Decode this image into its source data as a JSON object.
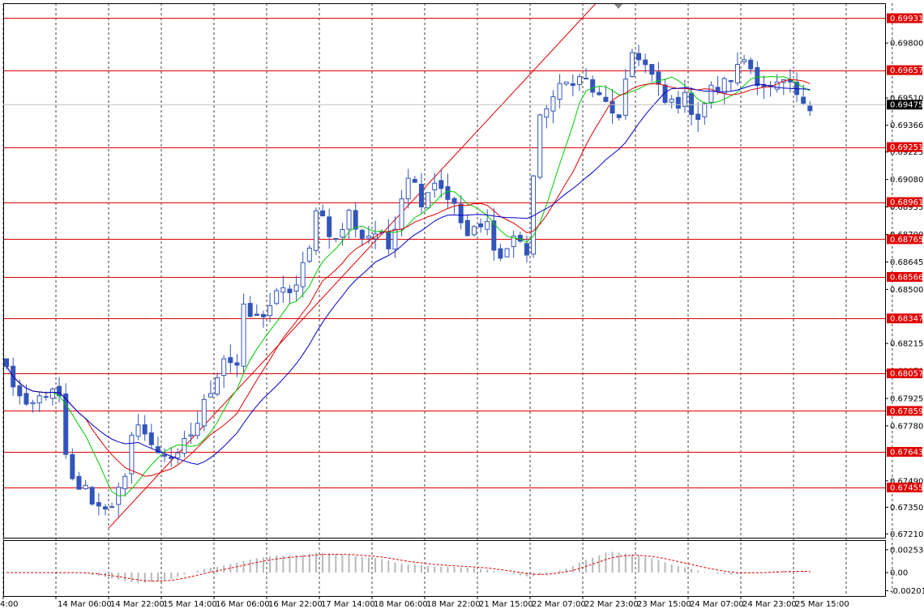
{
  "chart_data": {
    "type": "candlestick",
    "price_axis": {
      "ticks": [
        "0.69800",
        "0.69510",
        "0.69366",
        "0.69225",
        "0.69080",
        "0.68935",
        "0.68790",
        "0.68645",
        "0.68500",
        "0.68215",
        "0.68070",
        "0.67925",
        "0.67780",
        "0.67490",
        "0.67350",
        "0.67210"
      ],
      "tick_values": [
        0.698,
        0.6951,
        0.69366,
        0.69225,
        0.6908,
        0.68935,
        0.6879,
        0.68645,
        0.685,
        0.68215,
        0.6807,
        0.67925,
        0.6778,
        0.6749,
        0.6735,
        0.6721
      ],
      "range": [
        0.6719,
        0.7001
      ]
    },
    "time_axis": {
      "labels": [
        "4:00",
        "14 Mar 06:00",
        "14 Mar 22:00",
        "15 Mar 14:00",
        "16 Mar 06:00",
        "16 Mar 22:00",
        "17 Mar 14:00",
        "18 Mar 06:00",
        "18 Mar 22:00",
        "21 Mar 15:00",
        "22 Mar 07:00",
        "22 Mar 23:00",
        "23 Mar 15:00",
        "24 Mar 07:00",
        "24 Mar 23:00",
        "25 Mar 15:00"
      ],
      "label_bar_index": [
        0,
        8,
        16,
        24,
        32,
        40,
        48,
        56,
        64,
        72,
        80,
        88,
        96,
        104,
        112,
        120
      ]
    },
    "levels": [
      {
        "label": "0.69931",
        "value": 0.69931
      },
      {
        "label": "0.69657",
        "value": 0.69657
      },
      {
        "label": "0.69251",
        "value": 0.69251
      },
      {
        "label": "0.68961",
        "value": 0.68961
      },
      {
        "label": "0.68765",
        "value": 0.68765
      },
      {
        "label": "0.68566",
        "value": 0.68566
      },
      {
        "label": "0.68347",
        "value": 0.68347
      },
      {
        "label": "0.68057",
        "value": 0.68057
      },
      {
        "label": "0.67859",
        "value": 0.67859
      },
      {
        "label": "0.67643",
        "value": 0.67643
      },
      {
        "label": "0.67455",
        "value": 0.67455
      }
    ],
    "current_price": {
      "label": "0.69475",
      "value": 0.69475
    },
    "trendline": {
      "from": {
        "bar": 16,
        "price": 0.6724
      },
      "to": {
        "bar": 90,
        "price": 0.7001
      }
    },
    "close_anchors": [
      [
        0,
        0.6808
      ],
      [
        3,
        0.6785
      ],
      [
        6,
        0.6796
      ],
      [
        8,
        0.6792
      ],
      [
        9,
        0.676
      ],
      [
        10,
        0.6748
      ],
      [
        12,
        0.6744
      ],
      [
        14,
        0.6735
      ],
      [
        16,
        0.6738
      ],
      [
        18,
        0.6748
      ],
      [
        19,
        0.677
      ],
      [
        20,
        0.6782
      ],
      [
        22,
        0.6766
      ],
      [
        24,
        0.6764
      ],
      [
        26,
        0.676
      ],
      [
        27,
        0.6768
      ],
      [
        29,
        0.678
      ],
      [
        31,
        0.6798
      ],
      [
        33,
        0.6815
      ],
      [
        35,
        0.681
      ],
      [
        36,
        0.6838
      ],
      [
        38,
        0.6834
      ],
      [
        41,
        0.6846
      ],
      [
        44,
        0.6852
      ],
      [
        46,
        0.687
      ],
      [
        47,
        0.6895
      ],
      [
        48,
        0.6888
      ],
      [
        50,
        0.6875
      ],
      [
        52,
        0.689
      ],
      [
        54,
        0.6878
      ],
      [
        56,
        0.688
      ],
      [
        58,
        0.6872
      ],
      [
        60,
        0.69
      ],
      [
        61,
        0.6912
      ],
      [
        63,
        0.6898
      ],
      [
        65,
        0.6908
      ],
      [
        67,
        0.69
      ],
      [
        70,
        0.6878
      ],
      [
        73,
        0.6884
      ],
      [
        75,
        0.6866
      ],
      [
        77,
        0.6878
      ],
      [
        79,
        0.687
      ],
      [
        80,
        0.691
      ],
      [
        81,
        0.6938
      ],
      [
        82,
        0.6948
      ],
      [
        84,
        0.6955
      ],
      [
        86,
        0.6962
      ],
      [
        88,
        0.696
      ],
      [
        90,
        0.695
      ],
      [
        92,
        0.6945
      ],
      [
        93,
        0.6938
      ],
      [
        95,
        0.6975
      ],
      [
        96,
        0.6974
      ],
      [
        98,
        0.6962
      ],
      [
        100,
        0.6948
      ],
      [
        103,
        0.695
      ],
      [
        105,
        0.6942
      ],
      [
        107,
        0.6955
      ],
      [
        109,
        0.6958
      ],
      [
        111,
        0.6966
      ],
      [
        112,
        0.6972
      ],
      [
        114,
        0.6962
      ],
      [
        116,
        0.6955
      ],
      [
        118,
        0.6958
      ],
      [
        120,
        0.6952
      ],
      [
        121,
        0.6945
      ],
      [
        122,
        0.6946
      ]
    ],
    "moving_averages": [
      {
        "color": "#00cc00",
        "period": 8
      },
      {
        "color": "#e00000",
        "period": 13
      },
      {
        "color": "#0000cc",
        "period": 21
      }
    ],
    "oscillator": {
      "ticks": [
        "0.002534",
        "0.00",
        "-0.002012"
      ],
      "tick_values": [
        0.002534,
        0.0,
        -0.002012
      ],
      "range": [
        -0.0026,
        0.0036
      ]
    },
    "grid": true
  }
}
